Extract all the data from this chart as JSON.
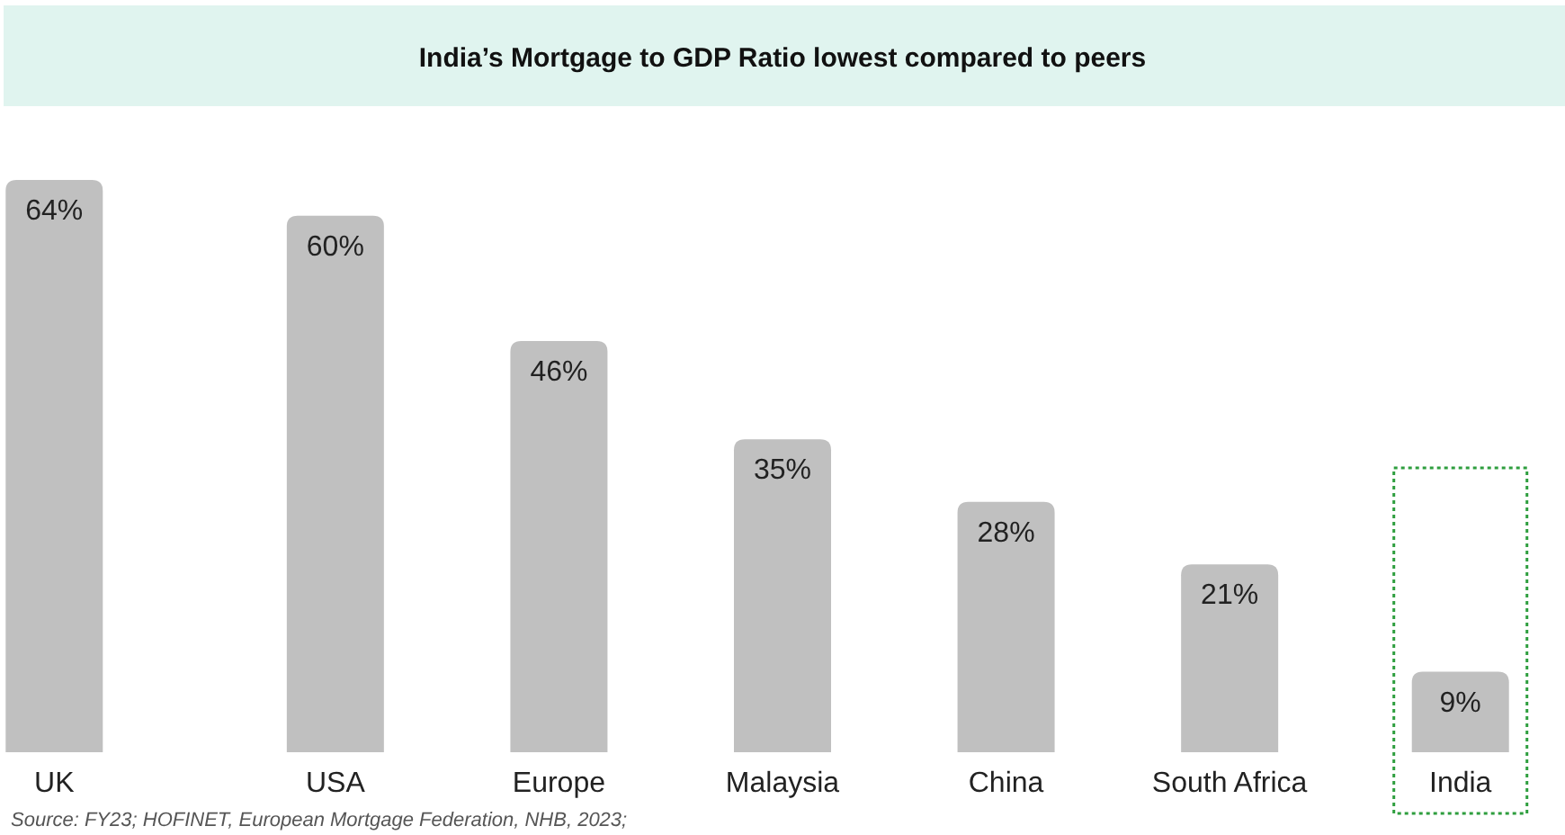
{
  "chart_data": {
    "type": "bar",
    "title": "India’s Mortgage to GDP Ratio lowest compared to peers",
    "categories": [
      "UK",
      "USA",
      "Europe",
      "Malaysia",
      "China",
      "South Africa",
      "India"
    ],
    "values": [
      64,
      60,
      46,
      35,
      28,
      21,
      9
    ],
    "color": "#c0c0c0",
    "value_labels": [
      "64%",
      "60%",
      "46%",
      "35%",
      "28%",
      "21%",
      "9%"
    ],
    "annotations": [
      "Source: FY23; HOFINET, European Mortgage Federation, NHB, 2023;"
    ]
  }
}
